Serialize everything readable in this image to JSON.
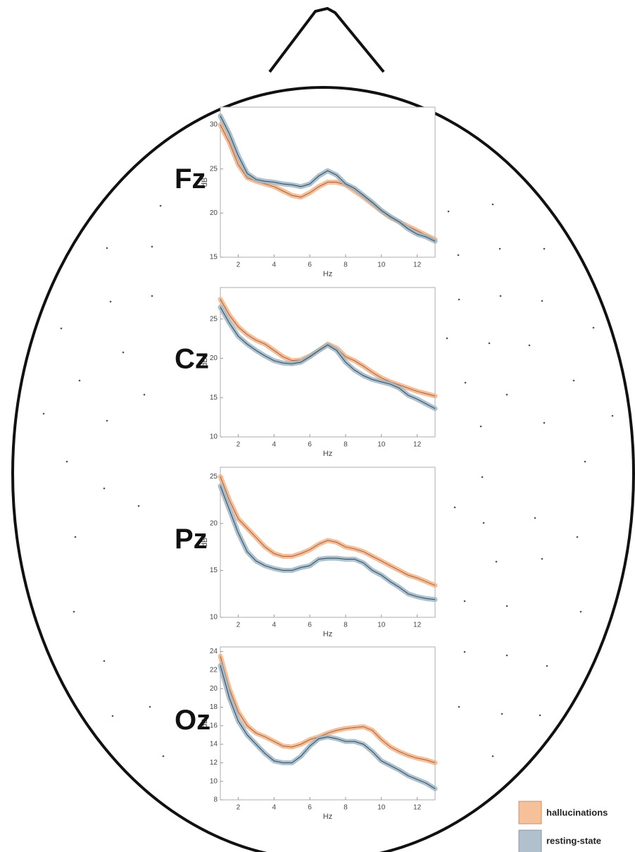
{
  "chart_data": [
    {
      "type": "line",
      "title": "Fz",
      "xlabel": "Hz",
      "ylabel": "dB",
      "x": [
        1,
        1.5,
        2,
        2.5,
        3,
        3.5,
        4,
        4.5,
        5,
        5.5,
        6,
        6.5,
        7,
        7.5,
        8,
        8.5,
        9,
        9.5,
        10,
        10.5,
        11,
        11.5,
        12,
        12.5,
        13
      ],
      "xlim": [
        1,
        13
      ],
      "xticks": [
        2,
        4,
        6,
        8,
        10,
        12
      ],
      "ylim": [
        15,
        32
      ],
      "yticks": [
        15,
        20,
        25,
        30
      ],
      "series": [
        {
          "name": "hallucinations",
          "color": "#f2b58a",
          "values": [
            30,
            28,
            25.5,
            24,
            23.6,
            23.3,
            23,
            22.5,
            22,
            21.8,
            22.3,
            23,
            23.5,
            23.5,
            23.2,
            22.5,
            21.8,
            21,
            20.2,
            19.5,
            19,
            18.5,
            18,
            17.5,
            17
          ]
        },
        {
          "name": "resting-state",
          "color": "#9fb6c6",
          "values": [
            31,
            29,
            26.5,
            24.5,
            23.8,
            23.6,
            23.5,
            23.3,
            23.2,
            23,
            23.3,
            24.2,
            24.8,
            24.3,
            23.3,
            22.8,
            22,
            21.2,
            20.3,
            19.6,
            19,
            18.2,
            17.6,
            17.3,
            16.8
          ]
        }
      ]
    },
    {
      "type": "line",
      "title": "Cz",
      "xlabel": "Hz",
      "ylabel": "dB",
      "x": [
        1,
        1.5,
        2,
        2.5,
        3,
        3.5,
        4,
        4.5,
        5,
        5.5,
        6,
        6.5,
        7,
        7.5,
        8,
        8.5,
        9,
        9.5,
        10,
        10.5,
        11,
        11.5,
        12,
        12.5,
        13
      ],
      "xlim": [
        1,
        13
      ],
      "xticks": [
        2,
        4,
        6,
        8,
        10,
        12
      ],
      "ylim": [
        10,
        29
      ],
      "yticks": [
        10,
        15,
        20,
        25
      ],
      "series": [
        {
          "name": "hallucinations",
          "color": "#f2b58a",
          "values": [
            27.5,
            25.5,
            24,
            23,
            22.3,
            21.8,
            21,
            20.2,
            19.7,
            19.8,
            20.3,
            21,
            21.8,
            21.3,
            20.2,
            19.7,
            19,
            18.2,
            17.5,
            17,
            16.6,
            16.2,
            15.8,
            15.5,
            15.2
          ]
        },
        {
          "name": "resting-state",
          "color": "#9fb6c6",
          "values": [
            26.5,
            24.5,
            22.8,
            21.8,
            21,
            20.3,
            19.7,
            19.4,
            19.3,
            19.5,
            20.2,
            21,
            21.7,
            21,
            19.5,
            18.5,
            17.8,
            17.3,
            17,
            16.7,
            16.2,
            15.3,
            14.8,
            14.2,
            13.6
          ]
        }
      ]
    },
    {
      "type": "line",
      "title": "Pz",
      "xlabel": "Hz",
      "ylabel": "dB",
      "x": [
        1,
        1.5,
        2,
        2.5,
        3,
        3.5,
        4,
        4.5,
        5,
        5.5,
        6,
        6.5,
        7,
        7.5,
        8,
        8.5,
        9,
        9.5,
        10,
        10.5,
        11,
        11.5,
        12,
        12.5,
        13
      ],
      "xlim": [
        1,
        13
      ],
      "xticks": [
        2,
        4,
        6,
        8,
        10,
        12
      ],
      "ylim": [
        10,
        26
      ],
      "yticks": [
        10,
        15,
        20,
        25
      ],
      "series": [
        {
          "name": "hallucinations",
          "color": "#f2b58a",
          "values": [
            25,
            22.5,
            20.5,
            19.5,
            18.5,
            17.5,
            16.8,
            16.5,
            16.5,
            16.8,
            17.2,
            17.8,
            18.2,
            18,
            17.5,
            17.3,
            17,
            16.5,
            16,
            15.5,
            15,
            14.5,
            14.2,
            13.8,
            13.4
          ]
        },
        {
          "name": "resting-state",
          "color": "#9fb6c6",
          "values": [
            24,
            21.5,
            19,
            17,
            16,
            15.5,
            15.2,
            15,
            15,
            15.3,
            15.5,
            16.2,
            16.3,
            16.3,
            16.2,
            16.2,
            15.8,
            15,
            14.5,
            13.8,
            13.2,
            12.5,
            12.2,
            12,
            11.9
          ]
        }
      ]
    },
    {
      "type": "line",
      "title": "Oz",
      "xlabel": "Hz",
      "ylabel": "dB",
      "x": [
        1,
        1.5,
        2,
        2.5,
        3,
        3.5,
        4,
        4.5,
        5,
        5.5,
        6,
        6.5,
        7,
        7.5,
        8,
        8.5,
        9,
        9.5,
        10,
        10.5,
        11,
        11.5,
        12,
        12.5,
        13
      ],
      "xlim": [
        1,
        13
      ],
      "xticks": [
        2,
        4,
        6,
        8,
        10,
        12
      ],
      "ylim": [
        8,
        24.5
      ],
      "yticks": [
        8,
        10,
        12,
        14,
        16,
        18,
        20,
        22,
        24
      ],
      "series": [
        {
          "name": "hallucinations",
          "color": "#f2b58a",
          "values": [
            23.5,
            20,
            17.5,
            16,
            15.2,
            14.8,
            14.3,
            13.8,
            13.7,
            14,
            14.5,
            14.8,
            15.2,
            15.5,
            15.7,
            15.8,
            15.9,
            15.5,
            14.5,
            13.7,
            13.2,
            12.8,
            12.5,
            12.3,
            12
          ]
        },
        {
          "name": "resting-state",
          "color": "#9fb6c6",
          "values": [
            22.5,
            19,
            16.5,
            15,
            14,
            13,
            12.2,
            12,
            12,
            12.7,
            13.8,
            14.6,
            14.8,
            14.6,
            14.3,
            14.3,
            14,
            13.2,
            12.2,
            11.7,
            11.2,
            10.6,
            10.2,
            9.8,
            9.2
          ]
        }
      ]
    }
  ]
}
